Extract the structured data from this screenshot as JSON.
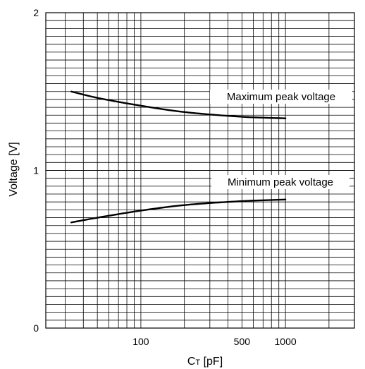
{
  "colors": {
    "background": "#ffffff",
    "grid": "#000000",
    "curve": "#000000",
    "text": "#000000"
  },
  "chart_data": {
    "type": "line",
    "xlabel_main": "C",
    "xlabel_sub": "T",
    "xlabel_unit": " [pF]",
    "ylabel": "Voltage [V]",
    "x_scale": "log",
    "xlim": [
      22,
      3000
    ],
    "ylim": [
      0,
      2
    ],
    "grid": true,
    "x_tick_labels": [
      {
        "value": 100,
        "label": "100"
      },
      {
        "value": 500,
        "label": "500"
      },
      {
        "value": 1000,
        "label": "1000"
      }
    ],
    "y_tick_labels": [
      {
        "value": 0,
        "label": "0"
      },
      {
        "value": 1,
        "label": "1"
      },
      {
        "value": 2,
        "label": "2"
      }
    ],
    "series": [
      {
        "name": "Maximum peak voltage",
        "x": [
          33,
          50,
          100,
          200,
          500,
          1000
        ],
        "y": [
          1.5,
          1.46,
          1.41,
          1.37,
          1.34,
          1.33
        ]
      },
      {
        "name": "Minimum peak voltage",
        "x": [
          33,
          50,
          100,
          200,
          500,
          1000
        ],
        "y": [
          0.67,
          0.7,
          0.745,
          0.78,
          0.805,
          0.815
        ]
      }
    ]
  }
}
